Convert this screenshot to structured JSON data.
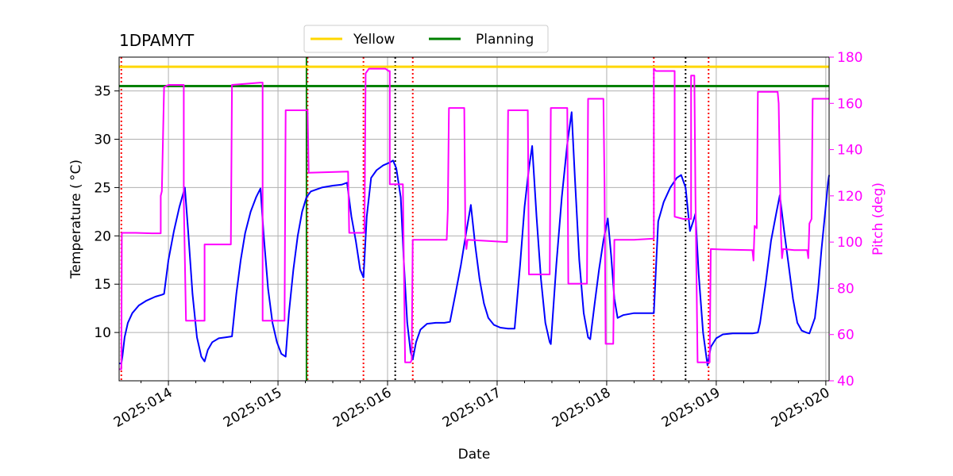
{
  "chart_data": {
    "type": "line",
    "title": "1DPAMYT",
    "xlabel": "Date",
    "ylabel": "Temperature ($^\\circ$C)",
    "ylabel_display": "Temperature ( °C)",
    "y2label": "Pitch (deg)",
    "xlim": [
      13.55,
      20.03
    ],
    "ylim": [
      5.0,
      38.5
    ],
    "y2lim": [
      40,
      180
    ],
    "x_ticks": [
      {
        "value": 14,
        "label": "2025:014"
      },
      {
        "value": 15,
        "label": "2025:015"
      },
      {
        "value": 16,
        "label": "2025:016"
      },
      {
        "value": 17,
        "label": "2025:017"
      },
      {
        "value": 18,
        "label": "2025:018"
      },
      {
        "value": 19,
        "label": "2025:019"
      },
      {
        "value": 20,
        "label": "2025:020"
      }
    ],
    "y_ticks": [
      10,
      15,
      20,
      25,
      30,
      35
    ],
    "y2_ticks": [
      40,
      60,
      80,
      100,
      120,
      140,
      160,
      180
    ],
    "grid": true,
    "legend": {
      "placement": "top-center",
      "entries": [
        {
          "name": "Yellow",
          "color": "#ffd700"
        },
        {
          "name": "Planning",
          "color": "#008000"
        }
      ]
    },
    "limits": [
      {
        "name": "Yellow",
        "value": 37.5,
        "color": "#ffd700"
      },
      {
        "name": "Planning",
        "value": 35.5,
        "color": "#008000"
      }
    ],
    "vlines_red": [
      13.57,
      15.27,
      15.78,
      16.23,
      18.43,
      18.93
    ],
    "vlines_black": [
      16.07,
      18.72
    ],
    "vlines_green": [
      15.26
    ],
    "series": [
      {
        "axis": "left",
        "color": "#0000ff",
        "points": [
          [
            13.55,
            6.8
          ],
          [
            13.57,
            6.8
          ],
          [
            13.58,
            7.5
          ],
          [
            13.6,
            9.5
          ],
          [
            13.63,
            11.0
          ],
          [
            13.67,
            12.0
          ],
          [
            13.73,
            12.8
          ],
          [
            13.8,
            13.3
          ],
          [
            13.88,
            13.7
          ],
          [
            13.94,
            13.9
          ],
          [
            13.96,
            14.0
          ],
          [
            14.0,
            17.5
          ],
          [
            14.05,
            20.5
          ],
          [
            14.1,
            23.0
          ],
          [
            14.15,
            25.0
          ],
          [
            14.18,
            20.5
          ],
          [
            14.22,
            14.0
          ],
          [
            14.26,
            9.5
          ],
          [
            14.3,
            7.5
          ],
          [
            14.33,
            7.0
          ],
          [
            14.36,
            8.2
          ],
          [
            14.4,
            9.0
          ],
          [
            14.46,
            9.4
          ],
          [
            14.52,
            9.5
          ],
          [
            14.58,
            9.6
          ],
          [
            14.62,
            14.0
          ],
          [
            14.66,
            17.5
          ],
          [
            14.7,
            20.3
          ],
          [
            14.75,
            22.5
          ],
          [
            14.8,
            24.0
          ],
          [
            14.84,
            24.9
          ],
          [
            14.87,
            20.0
          ],
          [
            14.91,
            14.5
          ],
          [
            14.95,
            11.0
          ],
          [
            14.99,
            9.0
          ],
          [
            15.03,
            7.8
          ],
          [
            15.07,
            7.5
          ],
          [
            15.1,
            12.0
          ],
          [
            15.14,
            16.5
          ],
          [
            15.18,
            20.0
          ],
          [
            15.22,
            22.5
          ],
          [
            15.26,
            24.0
          ],
          [
            15.3,
            24.6
          ],
          [
            15.4,
            25.0
          ],
          [
            15.5,
            25.2
          ],
          [
            15.58,
            25.3
          ],
          [
            15.63,
            25.5
          ],
          [
            15.67,
            22.0
          ],
          [
            15.71,
            19.5
          ],
          [
            15.75,
            16.5
          ],
          [
            15.78,
            15.7
          ],
          [
            15.81,
            22.0
          ],
          [
            15.85,
            26.0
          ],
          [
            15.9,
            26.8
          ],
          [
            15.96,
            27.3
          ],
          [
            16.02,
            27.6
          ],
          [
            16.05,
            27.8
          ],
          [
            16.08,
            27.0
          ],
          [
            16.12,
            24.0
          ],
          [
            16.15,
            17.0
          ],
          [
            16.18,
            11.0
          ],
          [
            16.21,
            8.0
          ],
          [
            16.23,
            7.2
          ],
          [
            16.26,
            9.0
          ],
          [
            16.3,
            10.3
          ],
          [
            16.36,
            10.9
          ],
          [
            16.44,
            11.0
          ],
          [
            16.52,
            11.0
          ],
          [
            16.57,
            11.1
          ],
          [
            16.62,
            14.0
          ],
          [
            16.67,
            17.0
          ],
          [
            16.72,
            20.5
          ],
          [
            16.76,
            23.2
          ],
          [
            16.8,
            19.0
          ],
          [
            16.84,
            15.5
          ],
          [
            16.88,
            13.0
          ],
          [
            16.92,
            11.5
          ],
          [
            16.97,
            10.8
          ],
          [
            17.03,
            10.5
          ],
          [
            17.1,
            10.4
          ],
          [
            17.16,
            10.4
          ],
          [
            17.21,
            17.0
          ],
          [
            17.25,
            23.0
          ],
          [
            17.29,
            27.0
          ],
          [
            17.32,
            29.3
          ],
          [
            17.36,
            22.0
          ],
          [
            17.4,
            15.5
          ],
          [
            17.44,
            11.0
          ],
          [
            17.48,
            9.0
          ],
          [
            17.49,
            8.8
          ],
          [
            17.54,
            17.0
          ],
          [
            17.59,
            24.0
          ],
          [
            17.64,
            29.5
          ],
          [
            17.68,
            32.8
          ],
          [
            17.71,
            26.0
          ],
          [
            17.75,
            17.5
          ],
          [
            17.79,
            12.0
          ],
          [
            17.83,
            9.5
          ],
          [
            17.85,
            9.3
          ],
          [
            17.89,
            13.0
          ],
          [
            17.93,
            16.5
          ],
          [
            17.97,
            19.5
          ],
          [
            18.01,
            21.8
          ],
          [
            18.04,
            18.0
          ],
          [
            18.07,
            13.5
          ],
          [
            18.1,
            11.5
          ],
          [
            18.15,
            11.8
          ],
          [
            18.25,
            12.0
          ],
          [
            18.35,
            12.0
          ],
          [
            18.43,
            12.0
          ],
          [
            18.47,
            21.5
          ],
          [
            18.52,
            23.5
          ],
          [
            18.58,
            25.0
          ],
          [
            18.64,
            26.0
          ],
          [
            18.68,
            26.3
          ],
          [
            18.72,
            25.0
          ],
          [
            18.76,
            20.5
          ],
          [
            18.79,
            21.5
          ],
          [
            18.81,
            22.3
          ],
          [
            18.84,
            16.0
          ],
          [
            18.88,
            10.0
          ],
          [
            18.92,
            6.6
          ],
          [
            18.95,
            8.5
          ],
          [
            19.0,
            9.4
          ],
          [
            19.06,
            9.8
          ],
          [
            19.15,
            9.9
          ],
          [
            19.25,
            9.9
          ],
          [
            19.33,
            9.9
          ],
          [
            19.38,
            10.0
          ],
          [
            19.4,
            11.0
          ],
          [
            19.45,
            15.0
          ],
          [
            19.5,
            19.5
          ],
          [
            19.55,
            22.5
          ],
          [
            19.58,
            24.2
          ],
          [
            19.62,
            20.5
          ],
          [
            19.66,
            17.0
          ],
          [
            19.7,
            13.5
          ],
          [
            19.74,
            11.0
          ],
          [
            19.78,
            10.2
          ],
          [
            19.82,
            10.0
          ],
          [
            19.85,
            9.9
          ],
          [
            19.9,
            11.5
          ],
          [
            19.93,
            14.5
          ],
          [
            19.96,
            18.5
          ],
          [
            19.99,
            22.0
          ],
          [
            20.02,
            25.5
          ],
          [
            20.03,
            26.3
          ]
        ]
      },
      {
        "axis": "right",
        "color": "#ff00ff",
        "points": [
          [
            13.55,
            45
          ],
          [
            13.57,
            45
          ],
          [
            13.575,
            104
          ],
          [
            13.7,
            104
          ],
          [
            13.85,
            103.8
          ],
          [
            13.93,
            103.8
          ],
          [
            13.93,
            120
          ],
          [
            13.94,
            122
          ],
          [
            13.96,
            167
          ],
          [
            14.0,
            168
          ],
          [
            14.14,
            168
          ],
          [
            14.14,
            118
          ],
          [
            14.16,
            66
          ],
          [
            14.33,
            66
          ],
          [
            14.33,
            99
          ],
          [
            14.57,
            99
          ],
          [
            14.58,
            168
          ],
          [
            14.84,
            169
          ],
          [
            14.86,
            169
          ],
          [
            14.86,
            66
          ],
          [
            15.06,
            66
          ],
          [
            15.07,
            157
          ],
          [
            15.27,
            157
          ],
          [
            15.28,
            130
          ],
          [
            15.64,
            130.5
          ],
          [
            15.65,
            104
          ],
          [
            15.79,
            104
          ],
          [
            15.79,
            107
          ],
          [
            15.8,
            173
          ],
          [
            15.83,
            175
          ],
          [
            15.98,
            175
          ],
          [
            16.01,
            174
          ],
          [
            16.02,
            174
          ],
          [
            16.02,
            125
          ],
          [
            16.14,
            125
          ],
          [
            16.16,
            48
          ],
          [
            16.21,
            48
          ],
          [
            16.22,
            49
          ],
          [
            16.23,
            101
          ],
          [
            16.54,
            101
          ],
          [
            16.55,
            114
          ],
          [
            16.56,
            158
          ],
          [
            16.7,
            158
          ],
          [
            16.71,
            102
          ],
          [
            16.72,
            97
          ],
          [
            16.73,
            101
          ],
          [
            17.09,
            100
          ],
          [
            17.1,
            157
          ],
          [
            17.28,
            157
          ],
          [
            17.29,
            86
          ],
          [
            17.48,
            86
          ],
          [
            17.49,
            158
          ],
          [
            17.64,
            158
          ],
          [
            17.65,
            82
          ],
          [
            17.82,
            82
          ],
          [
            17.83,
            162
          ],
          [
            17.97,
            162
          ],
          [
            17.98,
            125
          ],
          [
            17.99,
            56
          ],
          [
            18.06,
            56
          ],
          [
            18.07,
            101
          ],
          [
            18.25,
            101
          ],
          [
            18.43,
            101.5
          ],
          [
            18.43,
            175
          ],
          [
            18.45,
            174
          ],
          [
            18.62,
            174
          ],
          [
            18.62,
            111
          ],
          [
            18.7,
            110
          ],
          [
            18.77,
            110
          ],
          [
            18.77,
            172
          ],
          [
            18.8,
            172
          ],
          [
            18.81,
            120
          ],
          [
            18.83,
            48
          ],
          [
            18.94,
            48
          ],
          [
            18.95,
            97
          ],
          [
            19.05,
            96.8
          ],
          [
            19.31,
            96.5
          ],
          [
            19.33,
            96.5
          ],
          [
            19.34,
            92
          ],
          [
            19.35,
            107
          ],
          [
            19.37,
            106
          ],
          [
            19.38,
            165
          ],
          [
            19.41,
            165
          ],
          [
            19.56,
            165
          ],
          [
            19.57,
            160
          ],
          [
            19.59,
            104
          ],
          [
            19.6,
            93
          ],
          [
            19.61,
            97
          ],
          [
            19.71,
            96.5
          ],
          [
            19.83,
            96.5
          ],
          [
            19.84,
            93
          ],
          [
            19.85,
            108
          ],
          [
            19.87,
            110
          ],
          [
            19.88,
            162
          ],
          [
            19.95,
            162
          ],
          [
            20.03,
            162
          ]
        ]
      }
    ]
  }
}
